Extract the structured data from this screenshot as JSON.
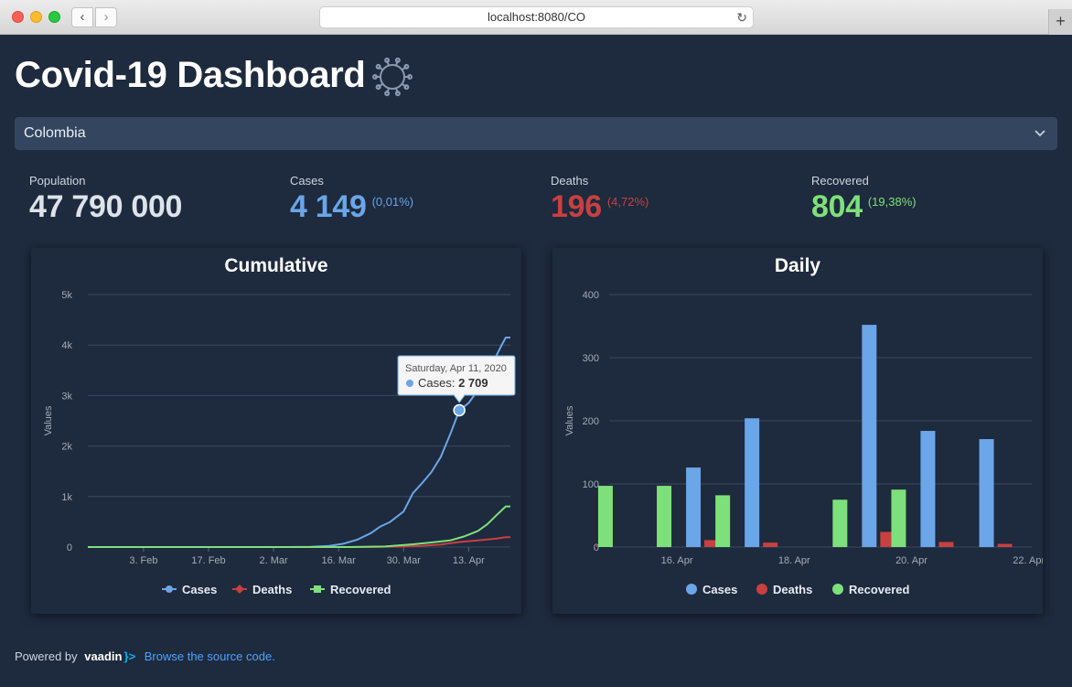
{
  "browser": {
    "url": "localhost:8080/CO",
    "new_tab_label": "+"
  },
  "app": {
    "title": "Covid-19 Dashboard",
    "country": "Colombia"
  },
  "stats": {
    "population": {
      "label": "Population",
      "value": "47 790 000"
    },
    "cases": {
      "label": "Cases",
      "value": "4 149",
      "pct": "(0,01%)"
    },
    "deaths": {
      "label": "Deaths",
      "value": "196",
      "pct": "(4,72%)"
    },
    "recovered": {
      "label": "Recovered",
      "value": "804",
      "pct": "(19,38%)"
    }
  },
  "colors": {
    "cases": "#6aa6e8",
    "deaths": "#c84040",
    "recovered": "#7ee07a",
    "population": "#dde3ea"
  },
  "footer": {
    "powered": "Powered by",
    "brand": "vaadin",
    "brand_suffix": "}>",
    "link": "Browse the source code."
  },
  "chart_data": [
    {
      "type": "line",
      "title": "Cumulative",
      "ylabel": "Values",
      "ylim": [
        0,
        5000
      ],
      "y_ticks": [
        "0",
        "1k",
        "2k",
        "3k",
        "4k",
        "5k"
      ],
      "x_ticks": [
        "3. Feb",
        "17. Feb",
        "2. Mar",
        "16. Mar",
        "30. Mar",
        "13. Apr"
      ],
      "x_tick_dates": [
        "2020-02-03",
        "2020-02-17",
        "2020-03-02",
        "2020-03-16",
        "2020-03-30",
        "2020-04-13"
      ],
      "x_range": [
        "2020-01-22",
        "2020-04-22"
      ],
      "legend": [
        "Cases",
        "Deaths",
        "Recovered"
      ],
      "legend_position": "bottom",
      "grid": true,
      "series": [
        {
          "name": "Cases",
          "x": [
            "2020-01-22",
            "2020-03-05",
            "2020-03-10",
            "2020-03-14",
            "2020-03-17",
            "2020-03-20",
            "2020-03-23",
            "2020-03-25",
            "2020-03-27",
            "2020-03-30",
            "2020-04-01",
            "2020-04-03",
            "2020-04-05",
            "2020-04-07",
            "2020-04-09",
            "2020-04-11",
            "2020-04-13",
            "2020-04-15",
            "2020-04-17",
            "2020-04-19",
            "2020-04-20",
            "2020-04-21",
            "2020-04-22"
          ],
          "values": [
            0,
            0,
            3,
            24,
            65,
            145,
            277,
            406,
            491,
            702,
            1065,
            1267,
            1485,
            1780,
            2223,
            2709,
            2852,
            3105,
            3439,
            3792,
            3977,
            4149,
            4149
          ]
        },
        {
          "name": "Deaths",
          "x": [
            "2020-01-22",
            "2020-03-22",
            "2020-03-30",
            "2020-04-03",
            "2020-04-07",
            "2020-04-11",
            "2020-04-15",
            "2020-04-19",
            "2020-04-21",
            "2020-04-22"
          ],
          "values": [
            0,
            0,
            10,
            25,
            50,
            100,
            131,
            166,
            196,
            196
          ]
        },
        {
          "name": "Recovered",
          "x": [
            "2020-01-22",
            "2020-03-18",
            "2020-03-26",
            "2020-04-01",
            "2020-04-05",
            "2020-04-09",
            "2020-04-12",
            "2020-04-15",
            "2020-04-17",
            "2020-04-19",
            "2020-04-21",
            "2020-04-22"
          ],
          "values": [
            0,
            0,
            10,
            55,
            90,
            130,
            209,
            318,
            450,
            630,
            804,
            804
          ]
        }
      ],
      "tooltip": {
        "date": "Saturday, Apr 11, 2020",
        "series": "Cases",
        "label": "Cases: ",
        "value": "2 709",
        "x": "2020-04-11",
        "y": 2709
      }
    },
    {
      "type": "bar",
      "title": "Daily",
      "ylabel": "Values",
      "ylim": [
        0,
        400
      ],
      "y_ticks": [
        "0",
        "100",
        "200",
        "300",
        "400"
      ],
      "x_ticks": [
        "16. Apr",
        "18. Apr",
        "20. Apr",
        "22. Apr"
      ],
      "x_tick_dates": [
        "2020-04-16",
        "2020-04-18",
        "2020-04-20",
        "2020-04-22"
      ],
      "legend": [
        "Cases",
        "Deaths",
        "Recovered"
      ],
      "legend_position": "bottom",
      "grid": true,
      "categories": [
        "2020-04-15",
        "2020-04-16",
        "2020-04-17",
        "2020-04-18",
        "2020-04-19",
        "2020-04-20",
        "2020-04-21",
        "2020-04-22"
      ],
      "series": [
        {
          "name": "Cases",
          "values": [
            0,
            126,
            204,
            0,
            352,
            184,
            171,
            0
          ]
        },
        {
          "name": "Deaths",
          "values": [
            3,
            11,
            7,
            0,
            24,
            8,
            5,
            0
          ]
        },
        {
          "name": "Recovered",
          "values": [
            97,
            97,
            82,
            0,
            75,
            91,
            0,
            0
          ]
        }
      ]
    }
  ]
}
